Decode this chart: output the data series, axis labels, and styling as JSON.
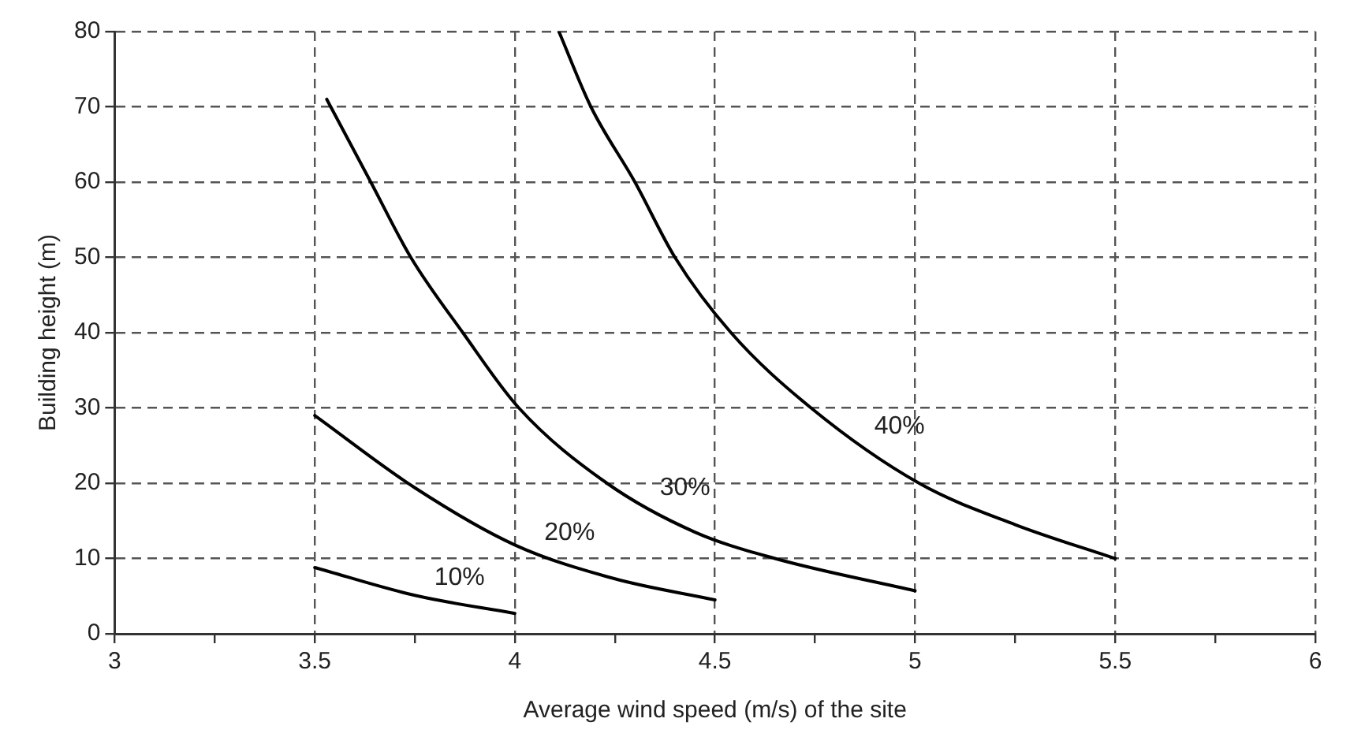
{
  "chart_data": {
    "type": "line",
    "xlabel": "Average wind speed (m/s) of the site",
    "ylabel": "Building height (m)",
    "xlim": [
      3,
      6
    ],
    "xticks": [
      3,
      {
        "value": 3.25,
        "label": null
      },
      3.5,
      {
        "value": 3.75,
        "label": null
      },
      4,
      {
        "value": 4.25,
        "label": null
      },
      4.5,
      {
        "value": 4.75,
        "label": null
      },
      5,
      {
        "value": 5.25,
        "label": null
      },
      5.5,
      {
        "value": 5.75,
        "label": null
      },
      6
    ],
    "ylim": [
      0,
      80
    ],
    "yticks": [
      0,
      10,
      20,
      30,
      40,
      50,
      60,
      70,
      80
    ],
    "grid": true,
    "legend": false,
    "marker": "none",
    "line_style": "solid",
    "series": [
      {
        "name": "10%",
        "color": "#000000",
        "x": [
          3.5,
          3.75,
          4
        ],
        "values": [
          8.8,
          5.1,
          2.7
        ]
      },
      {
        "name": "20%",
        "color": "#000000",
        "x": [
          3.5,
          3.75,
          4,
          4.25,
          4.5
        ],
        "values": [
          29,
          19.4,
          11.8,
          7.3,
          4.5
        ]
      },
      {
        "name": "30%",
        "color": "#000000",
        "x": [
          3.53,
          3.64,
          3.74,
          3.87,
          4.01,
          4.23,
          4.45,
          4.65,
          5
        ],
        "values": [
          71,
          60,
          50,
          40,
          30,
          20,
          13.5,
          10,
          5.7
        ]
      },
      {
        "name": "40%",
        "color": "#000000",
        "x": [
          4.11,
          4.19,
          4.3,
          4.4,
          4.54,
          4.74,
          5.01,
          5.25,
          5.5
        ],
        "values": [
          80,
          70,
          60,
          50,
          40,
          30,
          20,
          14.5,
          10
        ]
      }
    ]
  }
}
